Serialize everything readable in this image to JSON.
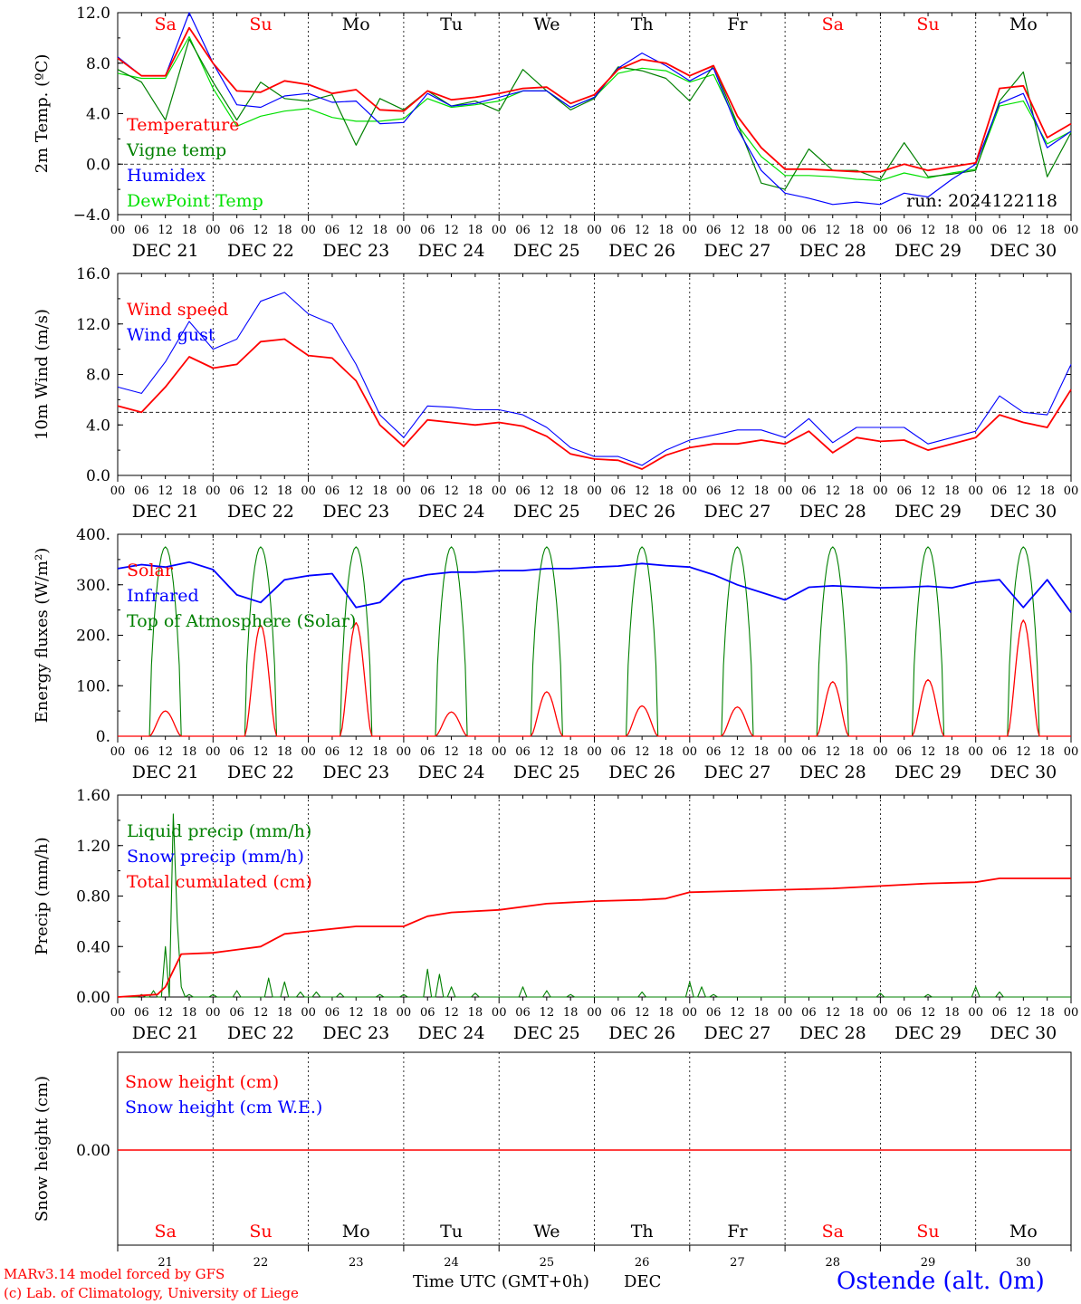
{
  "days": [
    "Sa",
    "Su",
    "Mo",
    "Tu",
    "We",
    "Th",
    "Fr",
    "Sa",
    "Su",
    "Mo"
  ],
  "weekend_indices": [
    0,
    1,
    7,
    8
  ],
  "date_labels": [
    "DEC 21",
    "DEC 22",
    "DEC 23",
    "DEC 24",
    "DEC 25",
    "DEC 26",
    "DEC 27",
    "DEC 28",
    "DEC 29",
    "DEC 30"
  ],
  "hour_ticks": [
    "00",
    "06",
    "12",
    "18"
  ],
  "bottom_day_numbers": [
    "21",
    "22",
    "23",
    "24",
    "25",
    "26",
    "27",
    "28",
    "29",
    "30"
  ],
  "footer": {
    "model": "MARv3.14 model forced by GFS",
    "credit": "(c) Lab. of Climatology, University of Liege",
    "xlabel": "Time UTC (GMT+0h)",
    "month": "DEC",
    "station": "Ostende (alt. 0m)"
  },
  "colors": {
    "red": "#ff0000",
    "green": "#008000",
    "blue": "#0000ff",
    "lightgreen": "#00e000",
    "grid": "#000000"
  },
  "chart_data": [
    {
      "type": "line",
      "ylabel": "2m Temp. (ºC)",
      "ylim": [
        -4,
        12
      ],
      "yticks": [
        "12.0",
        "8.0",
        "4.0",
        "0.0",
        "−4.0"
      ],
      "ytick_values": [
        12,
        8,
        4,
        0,
        -4
      ],
      "reference_line": 0,
      "annotation": "run: 2024122118",
      "x_hours": [
        0,
        6,
        12,
        18,
        24,
        30,
        36,
        42,
        48,
        54,
        60,
        66,
        72,
        78,
        84,
        90,
        96,
        102,
        108,
        114,
        120,
        126,
        132,
        138,
        144,
        150,
        156,
        162,
        168,
        174,
        180,
        186,
        192,
        198,
        204,
        210,
        216,
        222,
        228,
        234,
        240
      ],
      "series": [
        {
          "name": "Temperature",
          "color": "red",
          "values": [
            8.4,
            7.0,
            7.0,
            10.8,
            8.0,
            5.8,
            5.7,
            6.6,
            6.3,
            5.6,
            5.9,
            4.3,
            4.2,
            5.8,
            5.1,
            5.3,
            5.6,
            6.0,
            6.1,
            4.8,
            5.5,
            7.5,
            8.3,
            8.0,
            7.0,
            7.8,
            3.8,
            1.3,
            -0.4,
            -0.4,
            -0.5,
            -0.6,
            -0.6,
            0.0,
            -0.5,
            -0.2,
            0.1,
            6.0,
            6.2,
            2.1,
            3.2
          ]
        },
        {
          "name": "Vigne temp",
          "color": "green",
          "values": [
            7.5,
            6.5,
            3.5,
            9.9,
            6.5,
            3.5,
            6.5,
            5.2,
            5.0,
            5.5,
            1.5,
            5.2,
            4.3,
            5.8,
            4.6,
            5.0,
            4.2,
            7.5,
            5.8,
            4.3,
            5.2,
            7.7,
            7.4,
            6.8,
            5.0,
            7.8,
            3.2,
            -1.5,
            -2.0,
            1.2,
            -0.5,
            -0.5,
            -1.2,
            1.7,
            -1.0,
            -0.8,
            -0.5,
            5.0,
            7.3,
            -1.0,
            2.5
          ]
        },
        {
          "name": "Humidex",
          "color": "blue",
          "values": [
            8.5,
            7.0,
            7.0,
            12.0,
            8.0,
            4.7,
            4.5,
            5.4,
            5.6,
            4.9,
            5.0,
            3.2,
            3.3,
            5.6,
            4.6,
            4.8,
            5.3,
            5.8,
            5.8,
            4.5,
            5.3,
            7.6,
            8.8,
            7.8,
            6.6,
            7.6,
            2.8,
            -0.5,
            -2.3,
            -2.7,
            -3.2,
            -3.0,
            -3.2,
            -2.3,
            -2.6,
            -1.2,
            0.0,
            4.8,
            5.6,
            1.3,
            2.6
          ]
        },
        {
          "name": "DewPoint Temp",
          "color": "lightgreen",
          "values": [
            7.2,
            6.8,
            6.8,
            10.1,
            6.0,
            3.0,
            3.8,
            4.2,
            4.4,
            3.7,
            3.4,
            3.4,
            3.6,
            5.2,
            4.5,
            4.7,
            5.0,
            5.8,
            5.8,
            4.5,
            5.3,
            7.2,
            7.6,
            7.4,
            6.5,
            7.1,
            3.1,
            0.6,
            -0.9,
            -0.9,
            -1.0,
            -1.2,
            -1.3,
            -0.7,
            -1.1,
            -0.7,
            -0.4,
            4.6,
            5.0,
            1.6,
            2.6
          ]
        }
      ]
    },
    {
      "type": "line",
      "ylabel": "10m Wind (m/s)",
      "ylim": [
        0,
        16
      ],
      "yticks": [
        "16.0",
        "12.0",
        "8.0",
        "4.0",
        "0.0"
      ],
      "ytick_values": [
        16,
        12,
        8,
        4,
        0
      ],
      "reference_line": 5,
      "x_hours": [
        0,
        6,
        12,
        18,
        24,
        30,
        36,
        42,
        48,
        54,
        60,
        66,
        72,
        78,
        84,
        90,
        96,
        102,
        108,
        114,
        120,
        126,
        132,
        138,
        144,
        150,
        156,
        162,
        168,
        174,
        180,
        186,
        192,
        198,
        204,
        210,
        216,
        222,
        228,
        234,
        240
      ],
      "series": [
        {
          "name": "Wind speed",
          "color": "red",
          "values": [
            5.5,
            5.0,
            7.0,
            9.4,
            8.5,
            8.8,
            10.6,
            10.8,
            9.5,
            9.3,
            7.5,
            4.0,
            2.3,
            4.4,
            4.2,
            4.0,
            4.2,
            3.9,
            3.1,
            1.7,
            1.3,
            1.2,
            0.5,
            1.6,
            2.2,
            2.5,
            2.5,
            2.8,
            2.5,
            3.5,
            1.8,
            3.0,
            2.7,
            2.8,
            2.0,
            2.5,
            3.0,
            4.8,
            4.2,
            3.8,
            6.8
          ]
        },
        {
          "name": "Wind gust",
          "color": "blue",
          "values": [
            7.0,
            6.5,
            9.0,
            12.2,
            10.0,
            10.8,
            13.8,
            14.5,
            12.8,
            12.0,
            8.8,
            4.8,
            3.0,
            5.5,
            5.4,
            5.2,
            5.2,
            4.8,
            3.8,
            2.2,
            1.5,
            1.5,
            0.8,
            2.0,
            2.8,
            3.2,
            3.6,
            3.6,
            3.0,
            4.5,
            2.6,
            3.8,
            3.8,
            3.8,
            2.5,
            3.0,
            3.5,
            6.3,
            5.0,
            4.8,
            8.8
          ]
        }
      ]
    },
    {
      "type": "line",
      "ylabel": "Energy fluxes (W/m²)",
      "ylim": [
        0,
        400
      ],
      "yticks": [
        "400.",
        "300.",
        "200.",
        "100.",
        "0."
      ],
      "ytick_values": [
        400,
        300,
        200,
        100,
        0
      ],
      "diurnal": {
        "day_hours": [
          8,
          16
        ],
        "toa_peak": 375,
        "solar_peaks": [
          50,
          220,
          225,
          48,
          88,
          60,
          58,
          108,
          112,
          230
        ]
      },
      "infrared": {
        "x_hours": [
          0,
          6,
          12,
          18,
          24,
          30,
          36,
          42,
          48,
          54,
          60,
          66,
          72,
          78,
          84,
          90,
          96,
          102,
          108,
          114,
          120,
          126,
          132,
          138,
          144,
          150,
          156,
          162,
          168,
          174,
          180,
          186,
          192,
          198,
          204,
          210,
          216,
          222,
          228,
          234,
          240
        ],
        "values": [
          332,
          340,
          335,
          345,
          330,
          280,
          265,
          310,
          318,
          322,
          255,
          265,
          310,
          320,
          325,
          325,
          328,
          328,
          332,
          332,
          335,
          337,
          342,
          338,
          335,
          320,
          300,
          285,
          270,
          295,
          298,
          296,
          294,
          295,
          297,
          294,
          305,
          310,
          255,
          310,
          245
        ]
      },
      "series": [
        {
          "name": "Solar",
          "color": "red"
        },
        {
          "name": "Infrared",
          "color": "blue"
        },
        {
          "name": "Top of Atmosphere (Solar)",
          "color": "green"
        }
      ]
    },
    {
      "type": "line",
      "ylabel": "Precip (mm/h)",
      "ylim": [
        0,
        1.6
      ],
      "yticks": [
        "1.60",
        "1.20",
        "0.80",
        "0.40",
        "0.00"
      ],
      "ytick_values": [
        1.6,
        1.2,
        0.8,
        0.4,
        0.0
      ],
      "liquid_spikes": [
        [
          6,
          0.02
        ],
        [
          9,
          0.05
        ],
        [
          12,
          0.4
        ],
        [
          14,
          1.45
        ],
        [
          15,
          0.6
        ],
        [
          16,
          0.08
        ],
        [
          18,
          0.02
        ],
        [
          24,
          0.02
        ],
        [
          30,
          0.05
        ],
        [
          38,
          0.15
        ],
        [
          42,
          0.12
        ],
        [
          46,
          0.04
        ],
        [
          50,
          0.04
        ],
        [
          56,
          0.03
        ],
        [
          66,
          0.02
        ],
        [
          72,
          0.02
        ],
        [
          78,
          0.22
        ],
        [
          81,
          0.18
        ],
        [
          84,
          0.08
        ],
        [
          90,
          0.03
        ],
        [
          102,
          0.08
        ],
        [
          108,
          0.05
        ],
        [
          114,
          0.02
        ],
        [
          132,
          0.04
        ],
        [
          144,
          0.12
        ],
        [
          147,
          0.08
        ],
        [
          150,
          0.02
        ],
        [
          192,
          0.03
        ],
        [
          204,
          0.02
        ],
        [
          216,
          0.08
        ],
        [
          222,
          0.04
        ]
      ],
      "cumulative": {
        "x_hours": [
          0,
          10,
          12,
          16,
          24,
          36,
          42,
          48,
          60,
          72,
          78,
          84,
          96,
          108,
          120,
          132,
          138,
          144,
          168,
          180,
          192,
          204,
          216,
          222,
          240
        ],
        "values": [
          0,
          0.02,
          0.08,
          0.34,
          0.35,
          0.4,
          0.5,
          0.52,
          0.56,
          0.56,
          0.64,
          0.67,
          0.69,
          0.74,
          0.76,
          0.77,
          0.78,
          0.83,
          0.85,
          0.86,
          0.88,
          0.9,
          0.91,
          0.94,
          0.94
        ]
      },
      "series": [
        {
          "name": "Liquid precip (mm/h)",
          "color": "green"
        },
        {
          "name": "Snow precip (mm/h)",
          "color": "blue"
        },
        {
          "name": "Total cumulated (cm)",
          "color": "red"
        }
      ]
    },
    {
      "type": "line",
      "ylabel": "Snow height (cm)",
      "yticks": [
        "0.00"
      ],
      "series": [
        {
          "name": "Snow height (cm)",
          "color": "red",
          "values": [
            0,
            0
          ]
        },
        {
          "name": "Snow height (cm W.E.)",
          "color": "blue",
          "values": [
            0,
            0
          ]
        }
      ]
    }
  ]
}
